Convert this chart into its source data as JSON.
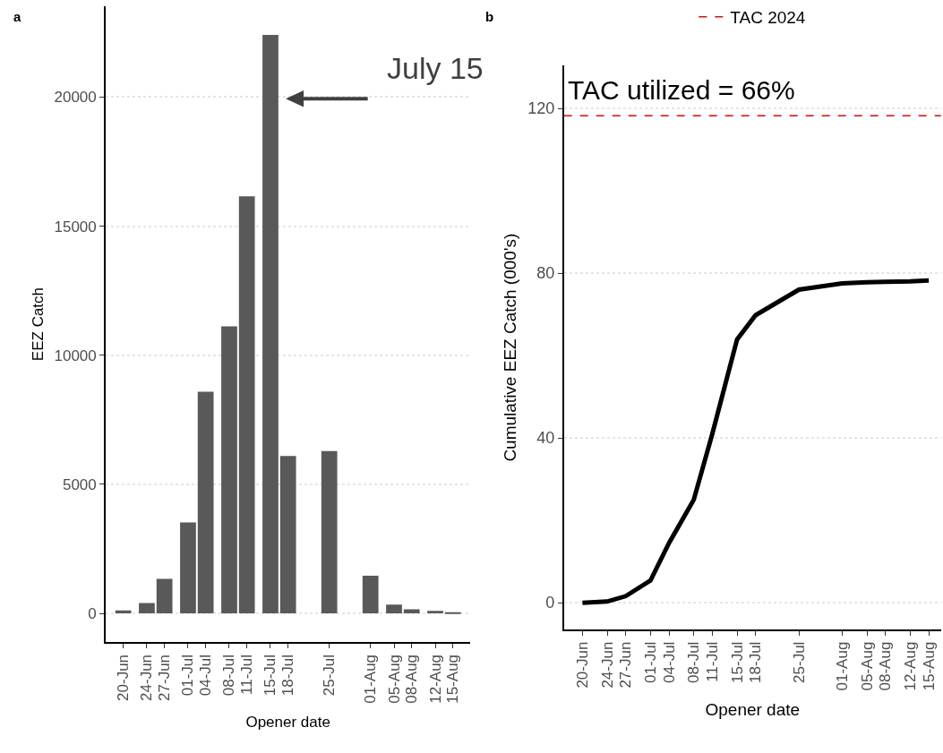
{
  "chart_data": [
    {
      "type": "bar",
      "title": "a",
      "xlabel": "Opener date",
      "ylabel": "EEZ Catch",
      "color": "#595959",
      "x": [
        "--06-20",
        "--06-24",
        "--06-27",
        "--07-01",
        "--07-04",
        "--07-08",
        "--07-11",
        "--07-15",
        "--07-18",
        "--07-25",
        "--08-01",
        "--08-05",
        "--08-08",
        "--08-12",
        "--08-15"
      ],
      "values": [
        120,
        400,
        1340,
        3520,
        8590,
        11120,
        16160,
        22410,
        6100,
        6290,
        1460,
        340,
        160,
        100,
        50
      ],
      "xlim": [
        "--06-17",
        "--08-18"
      ],
      "ylim": [
        -1120,
        23530
      ],
      "yticks": [
        0,
        5000,
        10000,
        15000,
        20000
      ],
      "xticks": [
        {
          "value": "--06-20",
          "label": "20-Jun"
        },
        {
          "value": "--06-24",
          "label": "24-Jun"
        },
        {
          "value": "--06-27",
          "label": "27-Jun"
        },
        {
          "value": "--07-01",
          "label": "01-Jul"
        },
        {
          "value": "--07-04",
          "label": "04-Jul"
        },
        {
          "value": "--07-08",
          "label": "08-Jul"
        },
        {
          "value": "--07-11",
          "label": "11-Jul"
        },
        {
          "value": "--07-15",
          "label": "15-Jul"
        },
        {
          "value": "--07-18",
          "label": "18-Jul"
        },
        {
          "value": "--07-25",
          "label": "25-Jul"
        },
        {
          "value": "--08-01",
          "label": "01-Aug"
        },
        {
          "value": "--08-05",
          "label": "05-Aug"
        },
        {
          "value": "--08-08",
          "label": "08-Aug"
        },
        {
          "value": "--08-12",
          "label": "12-Aug"
        },
        {
          "value": "--08-15",
          "label": "15-Aug"
        }
      ],
      "grid": "y",
      "annotations": [
        "July 15"
      ]
    },
    {
      "type": "line",
      "title": "b",
      "xlabel": "Opener date",
      "ylabel": "Cumulative EEZ Catch (000's)",
      "color": "#000000",
      "x": [
        "--06-20",
        "--06-24",
        "--06-27",
        "--07-01",
        "--07-04",
        "--07-08",
        "--07-11",
        "--07-15",
        "--07-18",
        "--07-25",
        "--08-01",
        "--08-05",
        "--08-08",
        "--08-12",
        "--08-15"
      ],
      "values": [
        0,
        0.3,
        1.6,
        5.4,
        14.5,
        25,
        41,
        63.9,
        69.8,
        76,
        77.5,
        77.8,
        77.9,
        78,
        78.2
      ],
      "xlim": [
        "--06-17",
        "--08-17"
      ],
      "ylim": [
        -6.5,
        130.4
      ],
      "yticks": [
        0,
        40,
        80,
        120
      ],
      "xticks": [
        {
          "value": "--06-20",
          "label": "20-Jun"
        },
        {
          "value": "--06-24",
          "label": "24-Jun"
        },
        {
          "value": "--06-27",
          "label": "27-Jun"
        },
        {
          "value": "--07-01",
          "label": "01-Jul"
        },
        {
          "value": "--07-04",
          "label": "04-Jul"
        },
        {
          "value": "--07-08",
          "label": "08-Jul"
        },
        {
          "value": "--07-11",
          "label": "11-Jul"
        },
        {
          "value": "--07-15",
          "label": "15-Jul"
        },
        {
          "value": "--07-18",
          "label": "18-Jul"
        },
        {
          "value": "--07-25",
          "label": "25-Jul"
        },
        {
          "value": "--08-01",
          "label": "01-Aug"
        },
        {
          "value": "--08-05",
          "label": "05-Aug"
        },
        {
          "value": "--08-08",
          "label": "08-Aug"
        },
        {
          "value": "--08-12",
          "label": "12-Aug"
        },
        {
          "value": "--08-15",
          "label": "15-Aug"
        }
      ],
      "grid": "y",
      "legend": "top",
      "ref_lines": [
        {
          "axis": "y",
          "value": 118.2,
          "label": "TAC 2024",
          "color": "#ff0000",
          "line_style": "dashed"
        }
      ],
      "annotations": [
        "TAC utilized = 66%"
      ]
    }
  ]
}
